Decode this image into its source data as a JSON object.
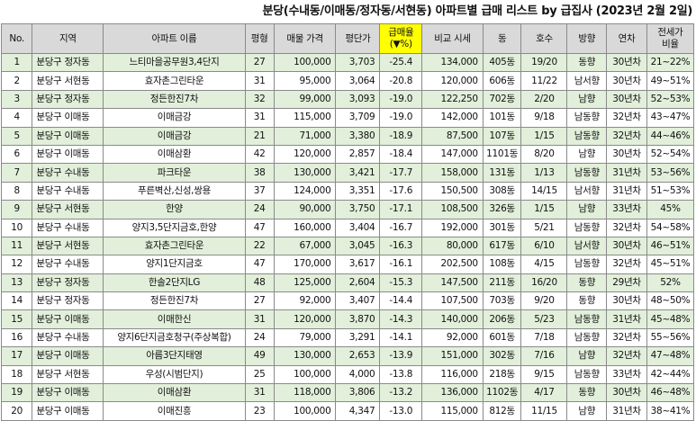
{
  "title": "분당(수내동/이매동/정자동/서현동) 아파트별 급매 리스트 by 급집사 (2023년 2월 2일)",
  "columns": {
    "no": "No.",
    "region": "지역",
    "apt": "아파트 이름",
    "pyeong": "평형",
    "price": "매물 가격",
    "per_pyeong": "평단가",
    "discount_l1": "급매율",
    "discount_l2": "(▼%)",
    "compare": "비교 시세",
    "dong": "동",
    "ho": "호수",
    "direction": "방향",
    "age": "연차",
    "jeonse_l1": "전세가",
    "jeonse_l2": "비율"
  },
  "rows": [
    {
      "no": "1",
      "region": "분당구 정자동",
      "apt": "느티마을공무원3,4단지",
      "pyeong": "27",
      "price": "100,000",
      "per_pyeong": "3,703",
      "discount": "-25.4",
      "compare": "134,000",
      "dong": "405동",
      "ho": "19/20",
      "direction": "동향",
      "age": "30년차",
      "jeonse": "21~22%"
    },
    {
      "no": "2",
      "region": "분당구 서현동",
      "apt": "효자촌그린타운",
      "pyeong": "31",
      "price": "95,000",
      "per_pyeong": "3,064",
      "discount": "-20.8",
      "compare": "120,000",
      "dong": "606동",
      "ho": "11/22",
      "direction": "남서향",
      "age": "30년차",
      "jeonse": "49~51%"
    },
    {
      "no": "3",
      "region": "분당구 정자동",
      "apt": "정든한진7차",
      "pyeong": "32",
      "price": "99,000",
      "per_pyeong": "3,093",
      "discount": "-19.0",
      "compare": "122,250",
      "dong": "702동",
      "ho": "2/20",
      "direction": "남향",
      "age": "30년차",
      "jeonse": "52~53%"
    },
    {
      "no": "4",
      "region": "분당구 이매동",
      "apt": "이매금강",
      "pyeong": "31",
      "price": "115,000",
      "per_pyeong": "3,709",
      "discount": "-19.0",
      "compare": "142,000",
      "dong": "101동",
      "ho": "9/18",
      "direction": "남동향",
      "age": "32년차",
      "jeonse": "43~47%"
    },
    {
      "no": "5",
      "region": "분당구 이매동",
      "apt": "이매금강",
      "pyeong": "21",
      "price": "71,000",
      "per_pyeong": "3,380",
      "discount": "-18.9",
      "compare": "87,500",
      "dong": "107동",
      "ho": "1/15",
      "direction": "남동향",
      "age": "32년차",
      "jeonse": "44~46%"
    },
    {
      "no": "6",
      "region": "분당구 이매동",
      "apt": "이매삼환",
      "pyeong": "42",
      "price": "120,000",
      "per_pyeong": "2,857",
      "discount": "-18.4",
      "compare": "147,000",
      "dong": "1101동",
      "ho": "8/20",
      "direction": "남향",
      "age": "30년차",
      "jeonse": "52~54%"
    },
    {
      "no": "7",
      "region": "분당구 수내동",
      "apt": "파크타운",
      "pyeong": "38",
      "price": "130,000",
      "per_pyeong": "3,421",
      "discount": "-17.7",
      "compare": "158,000",
      "dong": "131동",
      "ho": "1/13",
      "direction": "남동향",
      "age": "31년차",
      "jeonse": "53~56%"
    },
    {
      "no": "8",
      "region": "분당구 수내동",
      "apt": "푸른벽산,신성,쌍용",
      "pyeong": "37",
      "price": "124,000",
      "per_pyeong": "3,351",
      "discount": "-17.6",
      "compare": "150,500",
      "dong": "308동",
      "ho": "14/15",
      "direction": "남서향",
      "age": "31년차",
      "jeonse": "51~53%"
    },
    {
      "no": "9",
      "region": "분당구 서현동",
      "apt": "한양",
      "pyeong": "24",
      "price": "90,000",
      "per_pyeong": "3,750",
      "discount": "-17.1",
      "compare": "108,500",
      "dong": "326동",
      "ho": "1/15",
      "direction": "남향",
      "age": "33년차",
      "jeonse": "45%"
    },
    {
      "no": "10",
      "region": "분당구 수내동",
      "apt": "양지3,5단지금호,한양",
      "pyeong": "47",
      "price": "160,000",
      "per_pyeong": "3,404",
      "discount": "-16.7",
      "compare": "192,000",
      "dong": "301동",
      "ho": "5/21",
      "direction": "남동향",
      "age": "32년차",
      "jeonse": "54~58%"
    },
    {
      "no": "11",
      "region": "분당구 서현동",
      "apt": "효자촌그린타운",
      "pyeong": "22",
      "price": "67,000",
      "per_pyeong": "3,045",
      "discount": "-16.3",
      "compare": "80,000",
      "dong": "617동",
      "ho": "6/10",
      "direction": "남서향",
      "age": "30년차",
      "jeonse": "46~51%"
    },
    {
      "no": "12",
      "region": "분당구 수내동",
      "apt": "양지1단지금호",
      "pyeong": "47",
      "price": "170,000",
      "per_pyeong": "3,617",
      "discount": "-16.1",
      "compare": "202,500",
      "dong": "108동",
      "ho": "4/15",
      "direction": "남동향",
      "age": "32년차",
      "jeonse": "45~51%"
    },
    {
      "no": "13",
      "region": "분당구 정자동",
      "apt": "한솔2단지LG",
      "pyeong": "48",
      "price": "125,000",
      "per_pyeong": "2,604",
      "discount": "-15.3",
      "compare": "147,500",
      "dong": "211동",
      "ho": "16/20",
      "direction": "동향",
      "age": "29년차",
      "jeonse": "52%"
    },
    {
      "no": "14",
      "region": "분당구 정자동",
      "apt": "정든한진7차",
      "pyeong": "27",
      "price": "92,000",
      "per_pyeong": "3,407",
      "discount": "-14.4",
      "compare": "107,500",
      "dong": "703동",
      "ho": "9/20",
      "direction": "동향",
      "age": "30년차",
      "jeonse": "48~50%"
    },
    {
      "no": "15",
      "region": "분당구 이매동",
      "apt": "이매한신",
      "pyeong": "31",
      "price": "120,000",
      "per_pyeong": "3,870",
      "discount": "-14.3",
      "compare": "140,000",
      "dong": "206동",
      "ho": "5/23",
      "direction": "남동향",
      "age": "31년차",
      "jeonse": "45~48%"
    },
    {
      "no": "16",
      "region": "분당구 수내동",
      "apt": "양지6단지금호청구(주상복합)",
      "pyeong": "24",
      "price": "79,000",
      "per_pyeong": "3,291",
      "discount": "-14.1",
      "compare": "92,000",
      "dong": "601동",
      "ho": "7/18",
      "direction": "남동향",
      "age": "32년차",
      "jeonse": "55~56%"
    },
    {
      "no": "17",
      "region": "분당구 이매동",
      "apt": "아름3단지태영",
      "pyeong": "49",
      "price": "130,000",
      "per_pyeong": "2,653",
      "discount": "-13.9",
      "compare": "151,000",
      "dong": "302동",
      "ho": "7/16",
      "direction": "남향",
      "age": "32년차",
      "jeonse": "47~48%"
    },
    {
      "no": "18",
      "region": "분당구 서현동",
      "apt": "우성(시범단지)",
      "pyeong": "25",
      "price": "100,000",
      "per_pyeong": "4,000",
      "discount": "-13.8",
      "compare": "116,000",
      "dong": "218동",
      "ho": "9/15",
      "direction": "남동향",
      "age": "33년차",
      "jeonse": "42~44%"
    },
    {
      "no": "19",
      "region": "분당구 이매동",
      "apt": "이매삼환",
      "pyeong": "31",
      "price": "118,000",
      "per_pyeong": "3,806",
      "discount": "-13.2",
      "compare": "136,000",
      "dong": "1102동",
      "ho": "4/17",
      "direction": "동향",
      "age": "30년차",
      "jeonse": "46~48%"
    },
    {
      "no": "20",
      "region": "분당구 이매동",
      "apt": "이매진흥",
      "pyeong": "23",
      "price": "100,000",
      "per_pyeong": "4,347",
      "discount": "-13.0",
      "compare": "115,000",
      "dong": "812동",
      "ho": "11/15",
      "direction": "남향",
      "age": "31년차",
      "jeonse": "38~41%"
    }
  ]
}
